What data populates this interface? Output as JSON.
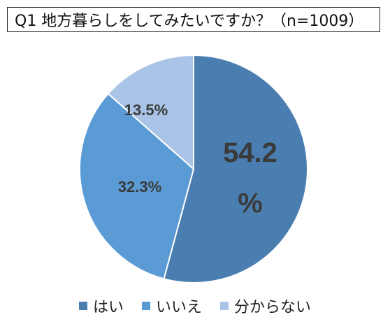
{
  "chart_data": {
    "type": "pie",
    "title": "Q1 地方暮らしをしてみたいですか？（n=1009）",
    "categories": [
      "はい",
      "いいえ",
      "分からない"
    ],
    "values": [
      54.2,
      32.3,
      13.5
    ],
    "value_labels": [
      "54.2%",
      "32.3%",
      "13.5%"
    ],
    "colors": [
      "#4a7eb1",
      "#5b9bd5",
      "#a9c4e6"
    ],
    "start_angle_deg": 0,
    "direction": "clockwise",
    "legend_position": "bottom"
  }
}
